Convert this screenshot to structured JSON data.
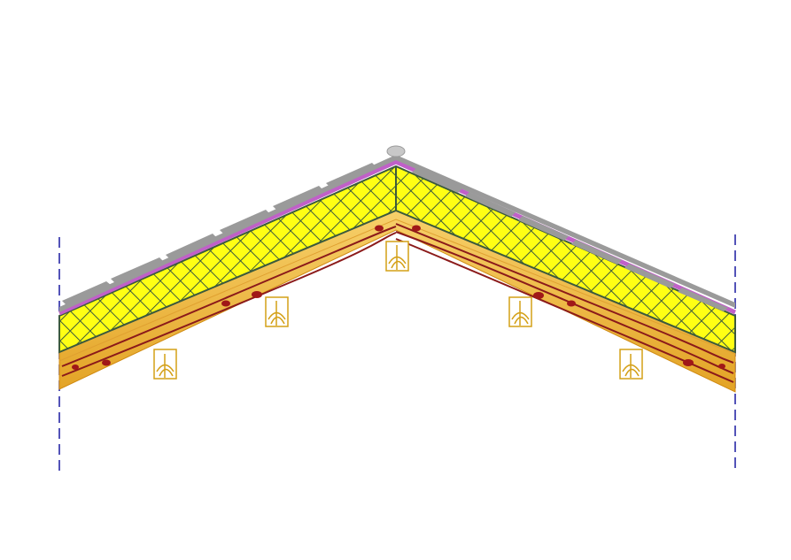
{
  "diagram": {
    "type": "roof-cross-section",
    "colors": {
      "background": "#ffffff",
      "tiles": "#9a9a9a",
      "ridge_cap": "#c8c8c8",
      "membrane": "#c060c8",
      "insulation_fill": "#ffff14",
      "insulation_mesh": "#3c5a3c",
      "deck_light": "#f5c95a",
      "deck_dark": "#e2a020",
      "wood_grain": "#8b1a1a",
      "knot": "#a01818",
      "purlin_outline": "#d4a017",
      "centerline": "#1a1aa0"
    },
    "layers": [
      "tiles",
      "membrane",
      "insulation",
      "timber-deck"
    ],
    "purlin_count": 5
  }
}
